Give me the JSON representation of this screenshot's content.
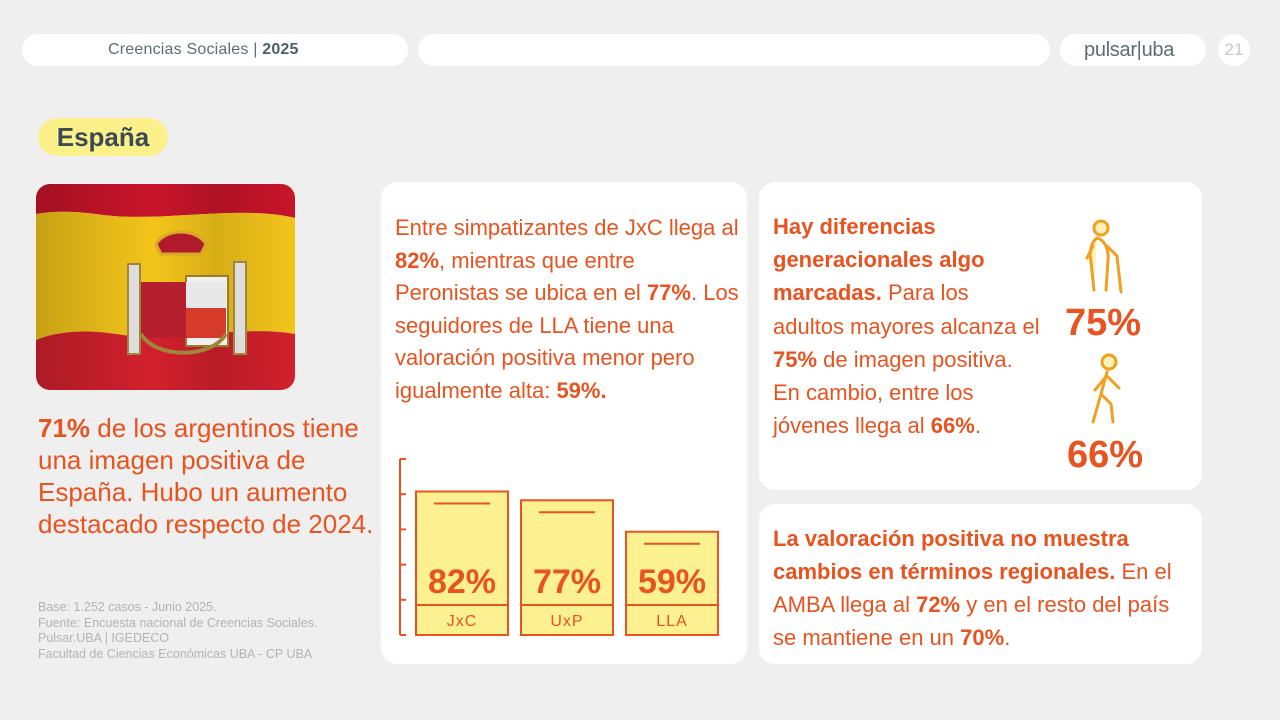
{
  "header": {
    "section": "Creencias Sociales",
    "separator": " | ",
    "year": "2025",
    "logo": "pulsar|uba",
    "page_number": "21"
  },
  "country": "España",
  "headline": {
    "highlight": "71%",
    "rest": " de los argentinos tiene una imagen positiva de España. Hubo un aumento destacado respecto de 2024."
  },
  "source": {
    "line1": "Base: 1.252 casos - Junio 2025.",
    "line2": "Fuente: Encuesta nacional de Creencias Sociales.",
    "line3": "Pulsar.UBA | IGEDECO",
    "line4": "Facultad de Ciencias Económicas UBA - CP UBA"
  },
  "parties_card": {
    "t1": "Entre simpatizantes de JxC llega al ",
    "b1": "82%",
    "t2": ", mientras que entre Peronistas se ubica en el ",
    "b2": "77%",
    "t3": ". Los seguidores de LLA tiene una valoración positiva menor pero igualmente alta: ",
    "b3": "59%."
  },
  "chart_data": {
    "type": "bar",
    "categories": [
      "JxC",
      "UxP",
      "LLA"
    ],
    "values": [
      82,
      77,
      59
    ],
    "value_labels": [
      "82%",
      "77%",
      "59%"
    ],
    "ylim": [
      0,
      100
    ],
    "colors": {
      "fill": "#fbf190",
      "stroke": "#e8531f"
    }
  },
  "age_card": {
    "b1": "Hay diferencias generacionales algo marcadas.",
    "t1": " Para los adultos mayores alcanza el ",
    "b2": "75%",
    "t2": " de imagen positiva. En cambio, entre los jóvenes llega al ",
    "b3": "66%",
    "t3": ".",
    "elderly_value": "75%",
    "young_value": "66%",
    "icons": [
      "elderly-person-icon",
      "walking-person-icon"
    ]
  },
  "region_card": {
    "b1": "La valoración positiva no muestra cambios en términos regionales.",
    "t1": " En el AMBA llega al ",
    "b2": "72%",
    "t2": " y en el resto del país se mantiene en un ",
    "b3": "70%",
    "t3": "."
  },
  "colors": {
    "accent": "#e8531f",
    "tag_yellow": "#fbf08a",
    "background": "#efefef"
  }
}
